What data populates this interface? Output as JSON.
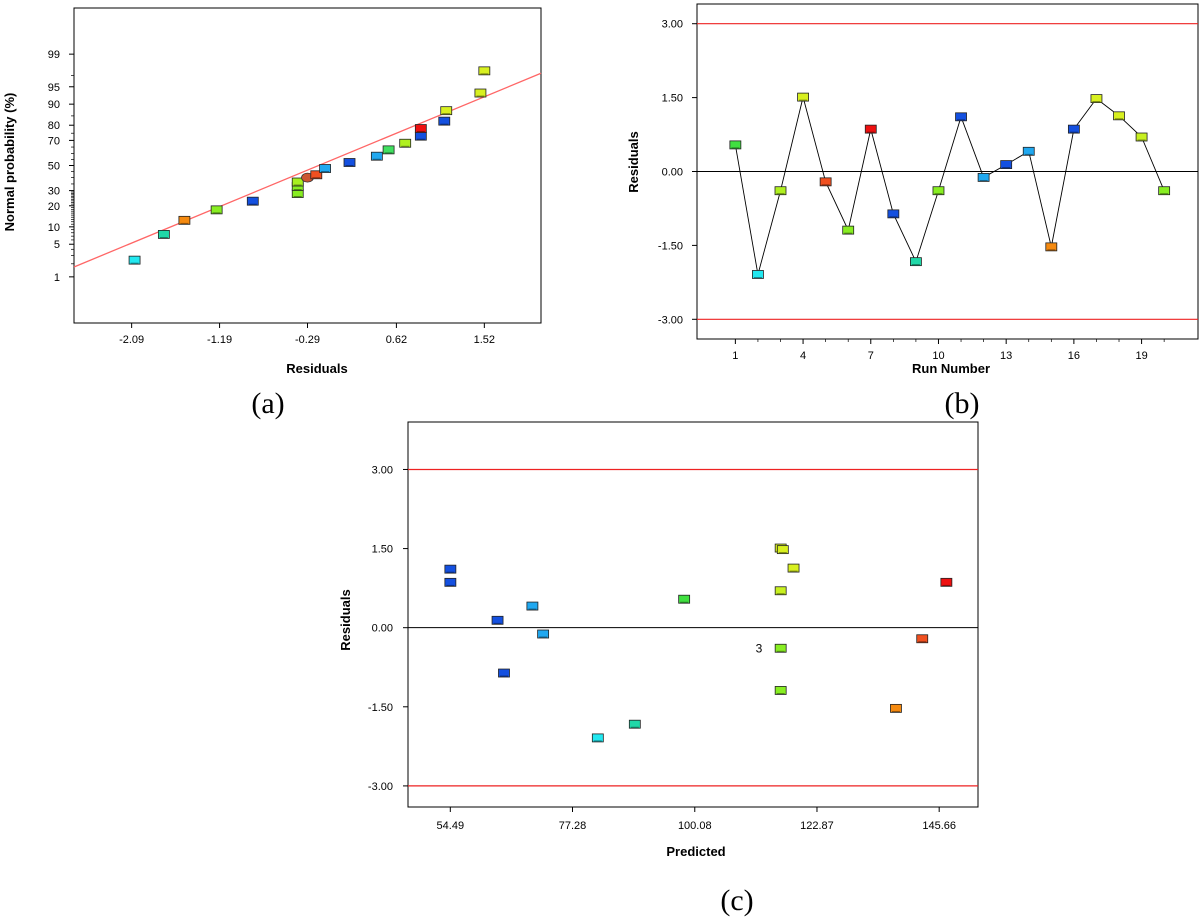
{
  "chart_data": [
    {
      "type": "scatter",
      "panel_label": "(a)",
      "xlabel": "Residuals",
      "ylabel": "Normal probability (%)",
      "x_ticks": [
        -2.09,
        -1.19,
        -0.29,
        0.62,
        1.52
      ],
      "x_tick_labels": [
        "-2.09",
        "-1.19",
        "-0.29",
        "0.62",
        "1.52"
      ],
      "xlim": [
        -2.68,
        2.1
      ],
      "y_ticks": [
        1,
        5,
        10,
        20,
        30,
        50,
        70,
        80,
        90,
        95,
        99
      ],
      "y_tick_labels": [
        "1",
        "5",
        "10",
        "20",
        "30",
        "50",
        "70",
        "80",
        "90",
        "95",
        "99"
      ],
      "prob_range": [
        0.05,
        99.95
      ],
      "fit_line": {
        "x": [
          -2.68,
          2.1
        ],
        "y": [
          1.7,
          97.3
        ],
        "color": "#ff6666"
      },
      "points": [
        {
          "x": -2.06,
          "y": 2.4,
          "color": "#22e8f0"
        },
        {
          "x": -1.76,
          "y": 7.5,
          "color": "#20d8a8"
        },
        {
          "x": -1.55,
          "y": 12.6,
          "color": "#f58a10"
        },
        {
          "x": -1.22,
          "y": 17.7,
          "color": "#88ee22"
        },
        {
          "x": -0.85,
          "y": 22.8,
          "color": "#1450e0"
        },
        {
          "x": -0.39,
          "y": 27.9,
          "color": "#88ee22"
        },
        {
          "x": -0.39,
          "y": 33.0,
          "color": "#88ee22"
        },
        {
          "x": -0.39,
          "y": 36.5,
          "color": "#a8f020"
        },
        {
          "x": -0.29,
          "y": 40.0,
          "color": "#cc5533",
          "marker": "circle"
        },
        {
          "x": -0.2,
          "y": 42.3,
          "color": "#f05020"
        },
        {
          "x": -0.11,
          "y": 47.5,
          "color": "#20a8f0"
        },
        {
          "x": 0.14,
          "y": 52.5,
          "color": "#1450e0"
        },
        {
          "x": 0.42,
          "y": 57.7,
          "color": "#20a8f0"
        },
        {
          "x": 0.54,
          "y": 62.8,
          "color": "#40e060"
        },
        {
          "x": 0.71,
          "y": 67.9,
          "color": "#b0f020"
        },
        {
          "x": 0.87,
          "y": 73.0,
          "color": "#1450e0"
        },
        {
          "x": 0.87,
          "y": 78.0,
          "color": "#ee1010"
        },
        {
          "x": 1.11,
          "y": 82.3,
          "color": "#1450e0"
        },
        {
          "x": 1.13,
          "y": 87.4,
          "color": "#d8f020"
        },
        {
          "x": 1.48,
          "y": 93.5,
          "color": "#d8f020"
        },
        {
          "x": 1.52,
          "y": 97.6,
          "color": "#d8f020"
        }
      ]
    },
    {
      "type": "line",
      "panel_label": "(b)",
      "xlabel": "Run Number",
      "ylabel": "Residuals",
      "x_ticks": [
        1,
        4,
        7,
        10,
        13,
        16,
        19
      ],
      "x_tick_labels": [
        "1",
        "4",
        "7",
        "10",
        "13",
        "16",
        "19"
      ],
      "xlim": [
        -0.7,
        21.5
      ],
      "y_ticks": [
        -3,
        -1.5,
        0,
        1.5,
        3
      ],
      "y_tick_labels": [
        "-3.00",
        "-1.50",
        "0.00",
        "1.50",
        "3.00"
      ],
      "ylim": [
        -3.4,
        3.4
      ],
      "reference_lines": [
        3.0,
        -3.0
      ],
      "reference_color": "#ee2222",
      "runs": [
        1,
        2,
        3,
        4,
        5,
        6,
        7,
        8,
        9,
        10,
        11,
        12,
        13,
        14,
        15,
        16,
        17,
        18,
        19,
        20
      ],
      "residuals": [
        0.54,
        -2.09,
        -0.39,
        1.51,
        -0.21,
        -1.19,
        0.86,
        -0.86,
        -1.83,
        -0.39,
        1.11,
        -0.12,
        0.14,
        0.41,
        -1.53,
        0.86,
        1.48,
        1.13,
        0.7,
        -0.39
      ],
      "colors": [
        "#40e040",
        "#22e8f0",
        "#b0f020",
        "#d8f020",
        "#f05020",
        "#88ee22",
        "#ee1010",
        "#1450e0",
        "#20d8a8",
        "#88ee22",
        "#1450e0",
        "#20a8f0",
        "#1450e0",
        "#20a8f0",
        "#f58a10",
        "#1450e0",
        "#d8f020",
        "#d8f020",
        "#c8f020",
        "#88ee22"
      ]
    },
    {
      "type": "scatter",
      "panel_label": "(c)",
      "xlabel": "Predicted",
      "ylabel": "Residuals",
      "x_ticks": [
        54.49,
        77.28,
        100.08,
        122.87,
        145.66
      ],
      "x_tick_labels": [
        "54.49",
        "77.28",
        "100.08",
        "122.87",
        "145.66"
      ],
      "xlim": [
        46.6,
        152.9
      ],
      "y_ticks": [
        -3,
        -1.5,
        0,
        1.5,
        3
      ],
      "y_tick_labels": [
        "-3.00",
        "-1.50",
        "0.00",
        "1.50",
        "3.00"
      ],
      "ylim": [
        -3.4,
        3.9
      ],
      "reference_lines": [
        3.0,
        -3.0
      ],
      "reference_color": "#ee2222",
      "annotation": {
        "text": "3",
        "x": 114.3,
        "y": -0.39
      },
      "points": [
        {
          "x": 54.5,
          "y": 1.11,
          "color": "#1450e0"
        },
        {
          "x": 54.5,
          "y": 0.86,
          "color": "#1450e0"
        },
        {
          "x": 63.3,
          "y": 0.14,
          "color": "#1450e0"
        },
        {
          "x": 64.5,
          "y": -0.86,
          "color": "#1450e0"
        },
        {
          "x": 69.8,
          "y": 0.41,
          "color": "#20a8f0"
        },
        {
          "x": 71.8,
          "y": -0.12,
          "color": "#20a8f0"
        },
        {
          "x": 82.0,
          "y": -2.09,
          "color": "#22e8f0"
        },
        {
          "x": 88.9,
          "y": -1.83,
          "color": "#20d8a8"
        },
        {
          "x": 98.1,
          "y": 0.54,
          "color": "#40e040"
        },
        {
          "x": 116.1,
          "y": 1.51,
          "color": "#d8f020"
        },
        {
          "x": 116.5,
          "y": 1.48,
          "color": "#d8f020"
        },
        {
          "x": 118.5,
          "y": 1.13,
          "color": "#d8f020"
        },
        {
          "x": 116.1,
          "y": 0.7,
          "color": "#c8f020"
        },
        {
          "x": 116.1,
          "y": -0.39,
          "color": "#88ee22"
        },
        {
          "x": 116.1,
          "y": -1.19,
          "color": "#88ee22"
        },
        {
          "x": 137.6,
          "y": -1.53,
          "color": "#f58a10"
        },
        {
          "x": 142.5,
          "y": -0.21,
          "color": "#f05020"
        },
        {
          "x": 147.0,
          "y": 0.86,
          "color": "#ee1010"
        }
      ]
    }
  ]
}
